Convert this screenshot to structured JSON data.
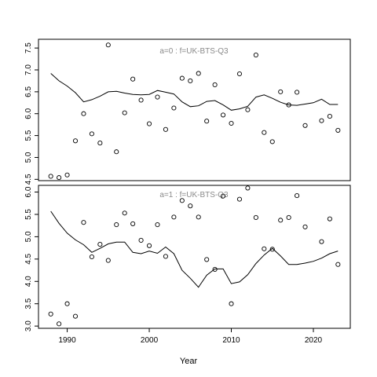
{
  "chart_data": [
    {
      "type": "scatter",
      "title": "a=0  :  f=UK-BTS-Q3",
      "xlabel": "",
      "ylabel": "",
      "xlim": [
        1986.5,
        2024.5
      ],
      "ylim": [
        4.47,
        7.7
      ],
      "yticks": [
        "4.5",
        "5.0",
        "5.5",
        "6.0",
        "6.5",
        "7.0",
        "7.5"
      ],
      "grid": false,
      "legend": "none",
      "points": {
        "x": [
          1988,
          1989,
          1990,
          1991,
          1992,
          1993,
          1994,
          1995,
          1996,
          1997,
          1998,
          1999,
          2000,
          2001,
          2002,
          2003,
          2004,
          2005,
          2006,
          2007,
          2008,
          2009,
          2010,
          2011,
          2012,
          2013,
          2014,
          2015,
          2016,
          2017,
          2018,
          2019,
          2021,
          2022,
          2023
        ],
        "y": [
          4.57,
          4.54,
          4.6,
          5.38,
          6.0,
          5.54,
          5.33,
          7.57,
          5.13,
          6.02,
          6.79,
          6.31,
          5.77,
          6.38,
          5.64,
          6.13,
          6.81,
          6.75,
          6.92,
          5.83,
          6.66,
          5.97,
          5.78,
          6.91,
          6.09,
          7.34,
          5.57,
          5.36,
          6.5,
          6.2,
          6.49,
          5.73,
          5.84,
          5.94,
          5.62
        ]
      },
      "line": {
        "x": [
          1988,
          1989,
          1990,
          1991,
          1992,
          1993,
          1994,
          1995,
          1996,
          1997,
          1998,
          1999,
          2000,
          2001,
          2002,
          2003,
          2004,
          2005,
          2006,
          2007,
          2008,
          2009,
          2010,
          2011,
          2012,
          2013,
          2014,
          2015,
          2016,
          2017,
          2018,
          2019,
          2020,
          2021,
          2022,
          2023
        ],
        "y": [
          6.92,
          6.75,
          6.63,
          6.48,
          6.27,
          6.32,
          6.4,
          6.5,
          6.51,
          6.47,
          6.44,
          6.43,
          6.44,
          6.53,
          6.49,
          6.45,
          6.27,
          6.16,
          6.18,
          6.28,
          6.3,
          6.2,
          6.08,
          6.11,
          6.17,
          6.38,
          6.43,
          6.35,
          6.26,
          6.2,
          6.19,
          6.22,
          6.25,
          6.33,
          6.21,
          6.21
        ]
      }
    },
    {
      "type": "scatter",
      "title": "a=1  :  f=UK-BTS-Q3",
      "xlabel": "Year",
      "ylabel": "",
      "xlim": [
        1986.5,
        2024.5
      ],
      "xticks": [
        "1990",
        "2000",
        "2010",
        "2020"
      ],
      "ylim": [
        2.95,
        6.15
      ],
      "yticks": [
        "3.0",
        "3.5",
        "4.0",
        "4.5",
        "5.0",
        "5.5",
        "6.0"
      ],
      "grid": false,
      "legend": "none",
      "points": {
        "x": [
          1988,
          1989,
          1990,
          1991,
          1992,
          1993,
          1994,
          1995,
          1996,
          1997,
          1998,
          1999,
          2000,
          2001,
          2002,
          2003,
          2004,
          2005,
          2006,
          2007,
          2008,
          2009,
          2010,
          2011,
          2012,
          2013,
          2014,
          2015,
          2016,
          2017,
          2018,
          2019,
          2021,
          2022,
          2023
        ],
        "y": [
          3.27,
          3.05,
          3.5,
          3.22,
          5.32,
          4.55,
          4.83,
          4.47,
          5.27,
          5.53,
          5.29,
          4.92,
          4.8,
          5.27,
          4.56,
          5.44,
          5.81,
          5.69,
          5.44,
          4.49,
          4.27,
          5.91,
          3.5,
          5.84,
          6.09,
          5.43,
          4.73,
          4.72,
          5.37,
          5.43,
          5.92,
          5.22,
          4.89,
          5.4,
          4.38
        ]
      },
      "line": {
        "x": [
          1988,
          1989,
          1990,
          1991,
          1992,
          1993,
          1994,
          1995,
          1996,
          1997,
          1998,
          1999,
          2000,
          2001,
          2002,
          2003,
          2004,
          2005,
          2006,
          2007,
          2008,
          2009,
          2010,
          2011,
          2012,
          2013,
          2014,
          2015,
          2016,
          2017,
          2018,
          2019,
          2020,
          2021,
          2022,
          2023
        ],
        "y": [
          5.57,
          5.3,
          5.08,
          4.93,
          4.82,
          4.65,
          4.74,
          4.84,
          4.88,
          4.88,
          4.65,
          4.62,
          4.68,
          4.63,
          4.77,
          4.62,
          4.25,
          4.07,
          3.87,
          4.14,
          4.28,
          4.28,
          3.95,
          3.99,
          4.15,
          4.4,
          4.59,
          4.74,
          4.57,
          4.38,
          4.38,
          4.41,
          4.45,
          4.52,
          4.62,
          4.68
        ]
      }
    }
  ],
  "xaxis": {
    "title": "Year"
  }
}
